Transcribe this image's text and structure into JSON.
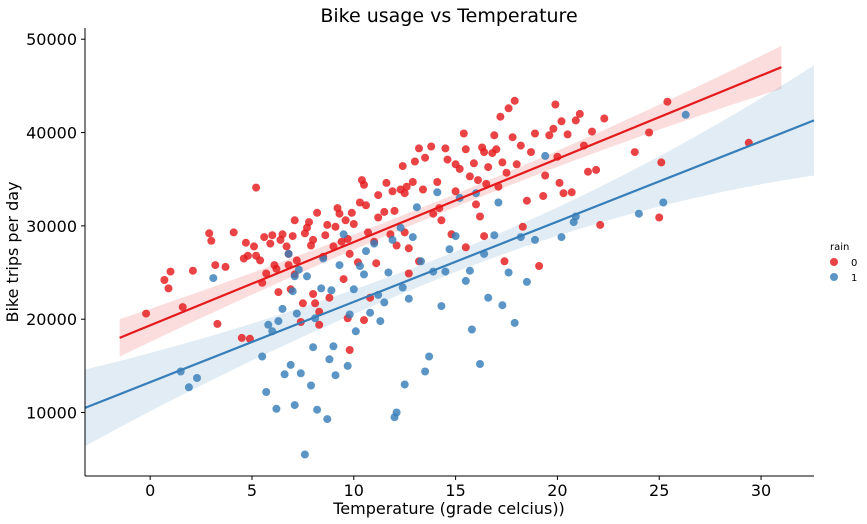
{
  "chart_data": {
    "type": "scatter",
    "title": "Bike usage vs Temperature",
    "xlabel": "Temperature (grade celcius))",
    "ylabel": "Bike trips per day",
    "xlim": [
      -3.2,
      32.6
    ],
    "ylim": [
      3200,
      51200
    ],
    "xticks": [
      0,
      5,
      10,
      15,
      20,
      25,
      30
    ],
    "yticks": [
      10000,
      20000,
      30000,
      40000,
      50000
    ],
    "grid": false,
    "legend": {
      "title": "rain",
      "placement": "right",
      "entries": [
        "0",
        "1"
      ]
    },
    "series": [
      {
        "name": "0",
        "color": "#e41a1c",
        "regression": {
          "x": [
            -1.5,
            31
          ],
          "y": [
            18000,
            47000
          ],
          "ci_half_width_start": 2000,
          "ci_half_width_mid": 700,
          "ci_half_width_end": 2300
        },
        "points": [
          [
            -0.2,
            20600
          ],
          [
            0.7,
            24200
          ],
          [
            0.9,
            23300
          ],
          [
            1.0,
            25100
          ],
          [
            1.6,
            21300
          ],
          [
            2.1,
            25200
          ],
          [
            2.9,
            29200
          ],
          [
            3.0,
            28400
          ],
          [
            3.2,
            25800
          ],
          [
            3.3,
            19500
          ],
          [
            3.7,
            25600
          ],
          [
            4.1,
            29300
          ],
          [
            4.5,
            18000
          ],
          [
            4.6,
            26500
          ],
          [
            4.7,
            28200
          ],
          [
            4.8,
            26800
          ],
          [
            4.9,
            17900
          ],
          [
            5.1,
            27800
          ],
          [
            5.2,
            26800
          ],
          [
            5.2,
            34100
          ],
          [
            5.4,
            26300
          ],
          [
            5.5,
            23900
          ],
          [
            5.6,
            28800
          ],
          [
            5.7,
            24900
          ],
          [
            5.9,
            28100
          ],
          [
            6.0,
            29000
          ],
          [
            6.1,
            25800
          ],
          [
            6.2,
            25400
          ],
          [
            6.3,
            22900
          ],
          [
            6.4,
            28500
          ],
          [
            6.5,
            29100
          ],
          [
            6.7,
            27800
          ],
          [
            6.8,
            27000
          ],
          [
            6.8,
            25800
          ],
          [
            6.9,
            23200
          ],
          [
            7.0,
            28900
          ],
          [
            7.1,
            24800
          ],
          [
            7.1,
            30600
          ],
          [
            7.2,
            26300
          ],
          [
            7.4,
            19700
          ],
          [
            7.5,
            21700
          ],
          [
            7.6,
            29200
          ],
          [
            7.7,
            29800
          ],
          [
            7.8,
            30400
          ],
          [
            7.9,
            27900
          ],
          [
            8.0,
            28500
          ],
          [
            8.0,
            22700
          ],
          [
            8.1,
            21700
          ],
          [
            8.2,
            31400
          ],
          [
            8.3,
            19400
          ],
          [
            8.3,
            20800
          ],
          [
            8.5,
            26700
          ],
          [
            8.6,
            29000
          ],
          [
            8.7,
            30100
          ],
          [
            8.8,
            22300
          ],
          [
            9.0,
            27800
          ],
          [
            9.1,
            29900
          ],
          [
            9.2,
            31900
          ],
          [
            9.3,
            31300
          ],
          [
            9.4,
            28300
          ],
          [
            9.5,
            24300
          ],
          [
            9.6,
            30600
          ],
          [
            9.7,
            28600
          ],
          [
            9.7,
            20100
          ],
          [
            9.8,
            16700
          ],
          [
            9.8,
            27000
          ],
          [
            9.9,
            31400
          ],
          [
            10.0,
            30200
          ],
          [
            10.2,
            26100
          ],
          [
            10.3,
            32500
          ],
          [
            10.4,
            34900
          ],
          [
            10.5,
            34400
          ],
          [
            10.5,
            19900
          ],
          [
            10.6,
            32200
          ],
          [
            10.7,
            29300
          ],
          [
            10.8,
            22300
          ],
          [
            11.0,
            28300
          ],
          [
            11.1,
            26000
          ],
          [
            11.2,
            33300
          ],
          [
            11.2,
            30900
          ],
          [
            11.5,
            31500
          ],
          [
            11.6,
            34600
          ],
          [
            11.8,
            29100
          ],
          [
            11.9,
            33700
          ],
          [
            12.0,
            31600
          ],
          [
            12.1,
            27900
          ],
          [
            12.3,
            33900
          ],
          [
            12.4,
            36400
          ],
          [
            12.5,
            33500
          ],
          [
            12.5,
            29300
          ],
          [
            12.6,
            34200
          ],
          [
            12.7,
            24900
          ],
          [
            12.7,
            27600
          ],
          [
            12.9,
            34700
          ],
          [
            13.0,
            36900
          ],
          [
            13.2,
            38300
          ],
          [
            13.2,
            26200
          ],
          [
            13.4,
            33900
          ],
          [
            13.5,
            37300
          ],
          [
            13.8,
            38500
          ],
          [
            13.9,
            31300
          ],
          [
            14.1,
            34700
          ],
          [
            14.2,
            31900
          ],
          [
            14.3,
            30600
          ],
          [
            14.5,
            38300
          ],
          [
            14.6,
            37100
          ],
          [
            14.8,
            29100
          ],
          [
            15.0,
            33700
          ],
          [
            15.0,
            36600
          ],
          [
            15.2,
            36100
          ],
          [
            15.4,
            39900
          ],
          [
            15.5,
            38200
          ],
          [
            15.5,
            27700
          ],
          [
            15.7,
            35300
          ],
          [
            15.9,
            36700
          ],
          [
            16.0,
            32300
          ],
          [
            16.1,
            34900
          ],
          [
            16.2,
            31000
          ],
          [
            16.3,
            38400
          ],
          [
            16.4,
            37900
          ],
          [
            16.4,
            28900
          ],
          [
            16.5,
            34500
          ],
          [
            16.6,
            36300
          ],
          [
            16.8,
            37800
          ],
          [
            16.9,
            39700
          ],
          [
            17.0,
            38200
          ],
          [
            17.1,
            34200
          ],
          [
            17.2,
            41700
          ],
          [
            17.3,
            36800
          ],
          [
            17.4,
            26200
          ],
          [
            17.5,
            35700
          ],
          [
            17.6,
            42600
          ],
          [
            17.8,
            39500
          ],
          [
            17.9,
            43400
          ],
          [
            18.0,
            36600
          ],
          [
            18.2,
            38600
          ],
          [
            18.3,
            29900
          ],
          [
            18.5,
            32700
          ],
          [
            18.7,
            37900
          ],
          [
            18.9,
            39900
          ],
          [
            19.1,
            25700
          ],
          [
            19.3,
            33200
          ],
          [
            19.4,
            35400
          ],
          [
            19.6,
            39700
          ],
          [
            19.8,
            40400
          ],
          [
            19.9,
            43000
          ],
          [
            20.0,
            37400
          ],
          [
            20.1,
            34600
          ],
          [
            20.2,
            41200
          ],
          [
            20.3,
            33500
          ],
          [
            20.5,
            39800
          ],
          [
            20.7,
            33600
          ],
          [
            20.9,
            41300
          ],
          [
            21.1,
            42000
          ],
          [
            21.3,
            38600
          ],
          [
            21.5,
            35800
          ],
          [
            21.7,
            40100
          ],
          [
            21.9,
            36000
          ],
          [
            22.1,
            30100
          ],
          [
            22.3,
            41500
          ],
          [
            23.8,
            37900
          ],
          [
            24.5,
            40000
          ],
          [
            25.0,
            30900
          ],
          [
            25.1,
            36800
          ],
          [
            25.4,
            43300
          ],
          [
            29.4,
            38900
          ]
        ]
      },
      {
        "name": "1",
        "color": "#377eb8",
        "regression": {
          "x": [
            -3.2,
            32.6
          ],
          "y": [
            10500,
            41300
          ],
          "ci_half_width_start": 4100,
          "ci_half_width_mid": 1100,
          "ci_half_width_end": 5900
        },
        "points": [
          [
            1.5,
            14400
          ],
          [
            1.9,
            12700
          ],
          [
            2.3,
            13700
          ],
          [
            3.1,
            24400
          ],
          [
            5.5,
            16000
          ],
          [
            5.7,
            12200
          ],
          [
            5.8,
            19400
          ],
          [
            6.0,
            18700
          ],
          [
            6.2,
            10400
          ],
          [
            6.3,
            19800
          ],
          [
            6.5,
            21100
          ],
          [
            6.6,
            14100
          ],
          [
            6.8,
            27000
          ],
          [
            6.9,
            15100
          ],
          [
            7.0,
            23000
          ],
          [
            7.1,
            24600
          ],
          [
            7.1,
            10800
          ],
          [
            7.2,
            20600
          ],
          [
            7.3,
            25300
          ],
          [
            7.4,
            14200
          ],
          [
            7.6,
            5500
          ],
          [
            7.7,
            24600
          ],
          [
            7.9,
            12900
          ],
          [
            8.0,
            17000
          ],
          [
            8.1,
            20100
          ],
          [
            8.2,
            10300
          ],
          [
            8.4,
            23300
          ],
          [
            8.5,
            26500
          ],
          [
            8.7,
            9300
          ],
          [
            8.8,
            15700
          ],
          [
            8.9,
            23100
          ],
          [
            9.0,
            17100
          ],
          [
            9.1,
            14000
          ],
          [
            9.3,
            25800
          ],
          [
            9.5,
            29100
          ],
          [
            9.7,
            15000
          ],
          [
            9.8,
            20500
          ],
          [
            10.0,
            23200
          ],
          [
            10.1,
            18700
          ],
          [
            10.3,
            25700
          ],
          [
            10.5,
            24800
          ],
          [
            10.6,
            27300
          ],
          [
            10.8,
            20700
          ],
          [
            11.0,
            28100
          ],
          [
            11.2,
            22600
          ],
          [
            11.3,
            19800
          ],
          [
            11.5,
            21800
          ],
          [
            11.7,
            25000
          ],
          [
            11.9,
            28500
          ],
          [
            12.0,
            9500
          ],
          [
            12.1,
            10000
          ],
          [
            12.3,
            29800
          ],
          [
            12.4,
            23400
          ],
          [
            12.5,
            13000
          ],
          [
            12.7,
            22200
          ],
          [
            12.9,
            28800
          ],
          [
            13.1,
            32000
          ],
          [
            13.3,
            26200
          ],
          [
            13.5,
            14400
          ],
          [
            13.7,
            16000
          ],
          [
            13.9,
            25100
          ],
          [
            14.1,
            33600
          ],
          [
            14.3,
            21400
          ],
          [
            14.5,
            25100
          ],
          [
            14.7,
            27500
          ],
          [
            15.0,
            28900
          ],
          [
            15.2,
            33000
          ],
          [
            15.5,
            24100
          ],
          [
            15.7,
            25200
          ],
          [
            15.8,
            18900
          ],
          [
            16.0,
            33500
          ],
          [
            16.2,
            15200
          ],
          [
            16.4,
            27000
          ],
          [
            16.6,
            22300
          ],
          [
            16.9,
            29000
          ],
          [
            17.1,
            32500
          ],
          [
            17.3,
            21500
          ],
          [
            17.6,
            25000
          ],
          [
            17.9,
            19600
          ],
          [
            18.2,
            28800
          ],
          [
            18.5,
            24000
          ],
          [
            18.9,
            28500
          ],
          [
            19.4,
            37500
          ],
          [
            20.2,
            28800
          ],
          [
            20.8,
            30400
          ],
          [
            20.9,
            31000
          ],
          [
            24.0,
            31300
          ],
          [
            25.2,
            32500
          ],
          [
            26.3,
            41900
          ]
        ]
      }
    ]
  }
}
